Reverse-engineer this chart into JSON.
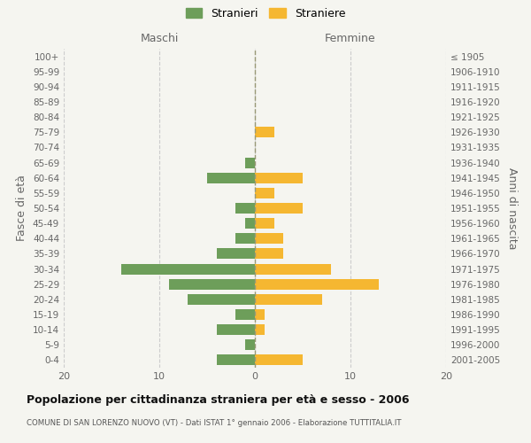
{
  "age_groups": [
    "0-4",
    "5-9",
    "10-14",
    "15-19",
    "20-24",
    "25-29",
    "30-34",
    "35-39",
    "40-44",
    "45-49",
    "50-54",
    "55-59",
    "60-64",
    "65-69",
    "70-74",
    "75-79",
    "80-84",
    "85-89",
    "90-94",
    "95-99",
    "100+"
  ],
  "birth_years": [
    "2001-2005",
    "1996-2000",
    "1991-1995",
    "1986-1990",
    "1981-1985",
    "1976-1980",
    "1971-1975",
    "1966-1970",
    "1961-1965",
    "1956-1960",
    "1951-1955",
    "1946-1950",
    "1941-1945",
    "1936-1940",
    "1931-1935",
    "1926-1930",
    "1921-1925",
    "1916-1920",
    "1911-1915",
    "1906-1910",
    "≤ 1905"
  ],
  "males": [
    4,
    1,
    4,
    2,
    7,
    9,
    14,
    4,
    2,
    1,
    2,
    0,
    5,
    1,
    0,
    0,
    0,
    0,
    0,
    0,
    0
  ],
  "females": [
    5,
    0,
    1,
    1,
    7,
    13,
    8,
    3,
    3,
    2,
    5,
    2,
    5,
    0,
    0,
    2,
    0,
    0,
    0,
    0,
    0
  ],
  "color_male": "#6d9e5a",
  "color_female": "#f5b731",
  "title": "Popolazione per cittadinanza straniera per età e sesso - 2006",
  "subtitle": "COMUNE DI SAN LORENZO NUOVO (VT) - Dati ISTAT 1° gennaio 2006 - Elaborazione TUTTITALIA.IT",
  "ylabel_left": "Fasce di età",
  "ylabel_right": "Anni di nascita",
  "xlabel_left": "Maschi",
  "xlabel_right": "Femmine",
  "legend_male": "Stranieri",
  "legend_female": "Straniere",
  "xlim": 20,
  "background_color": "#f5f5f0",
  "grid_color": "#cccccc"
}
